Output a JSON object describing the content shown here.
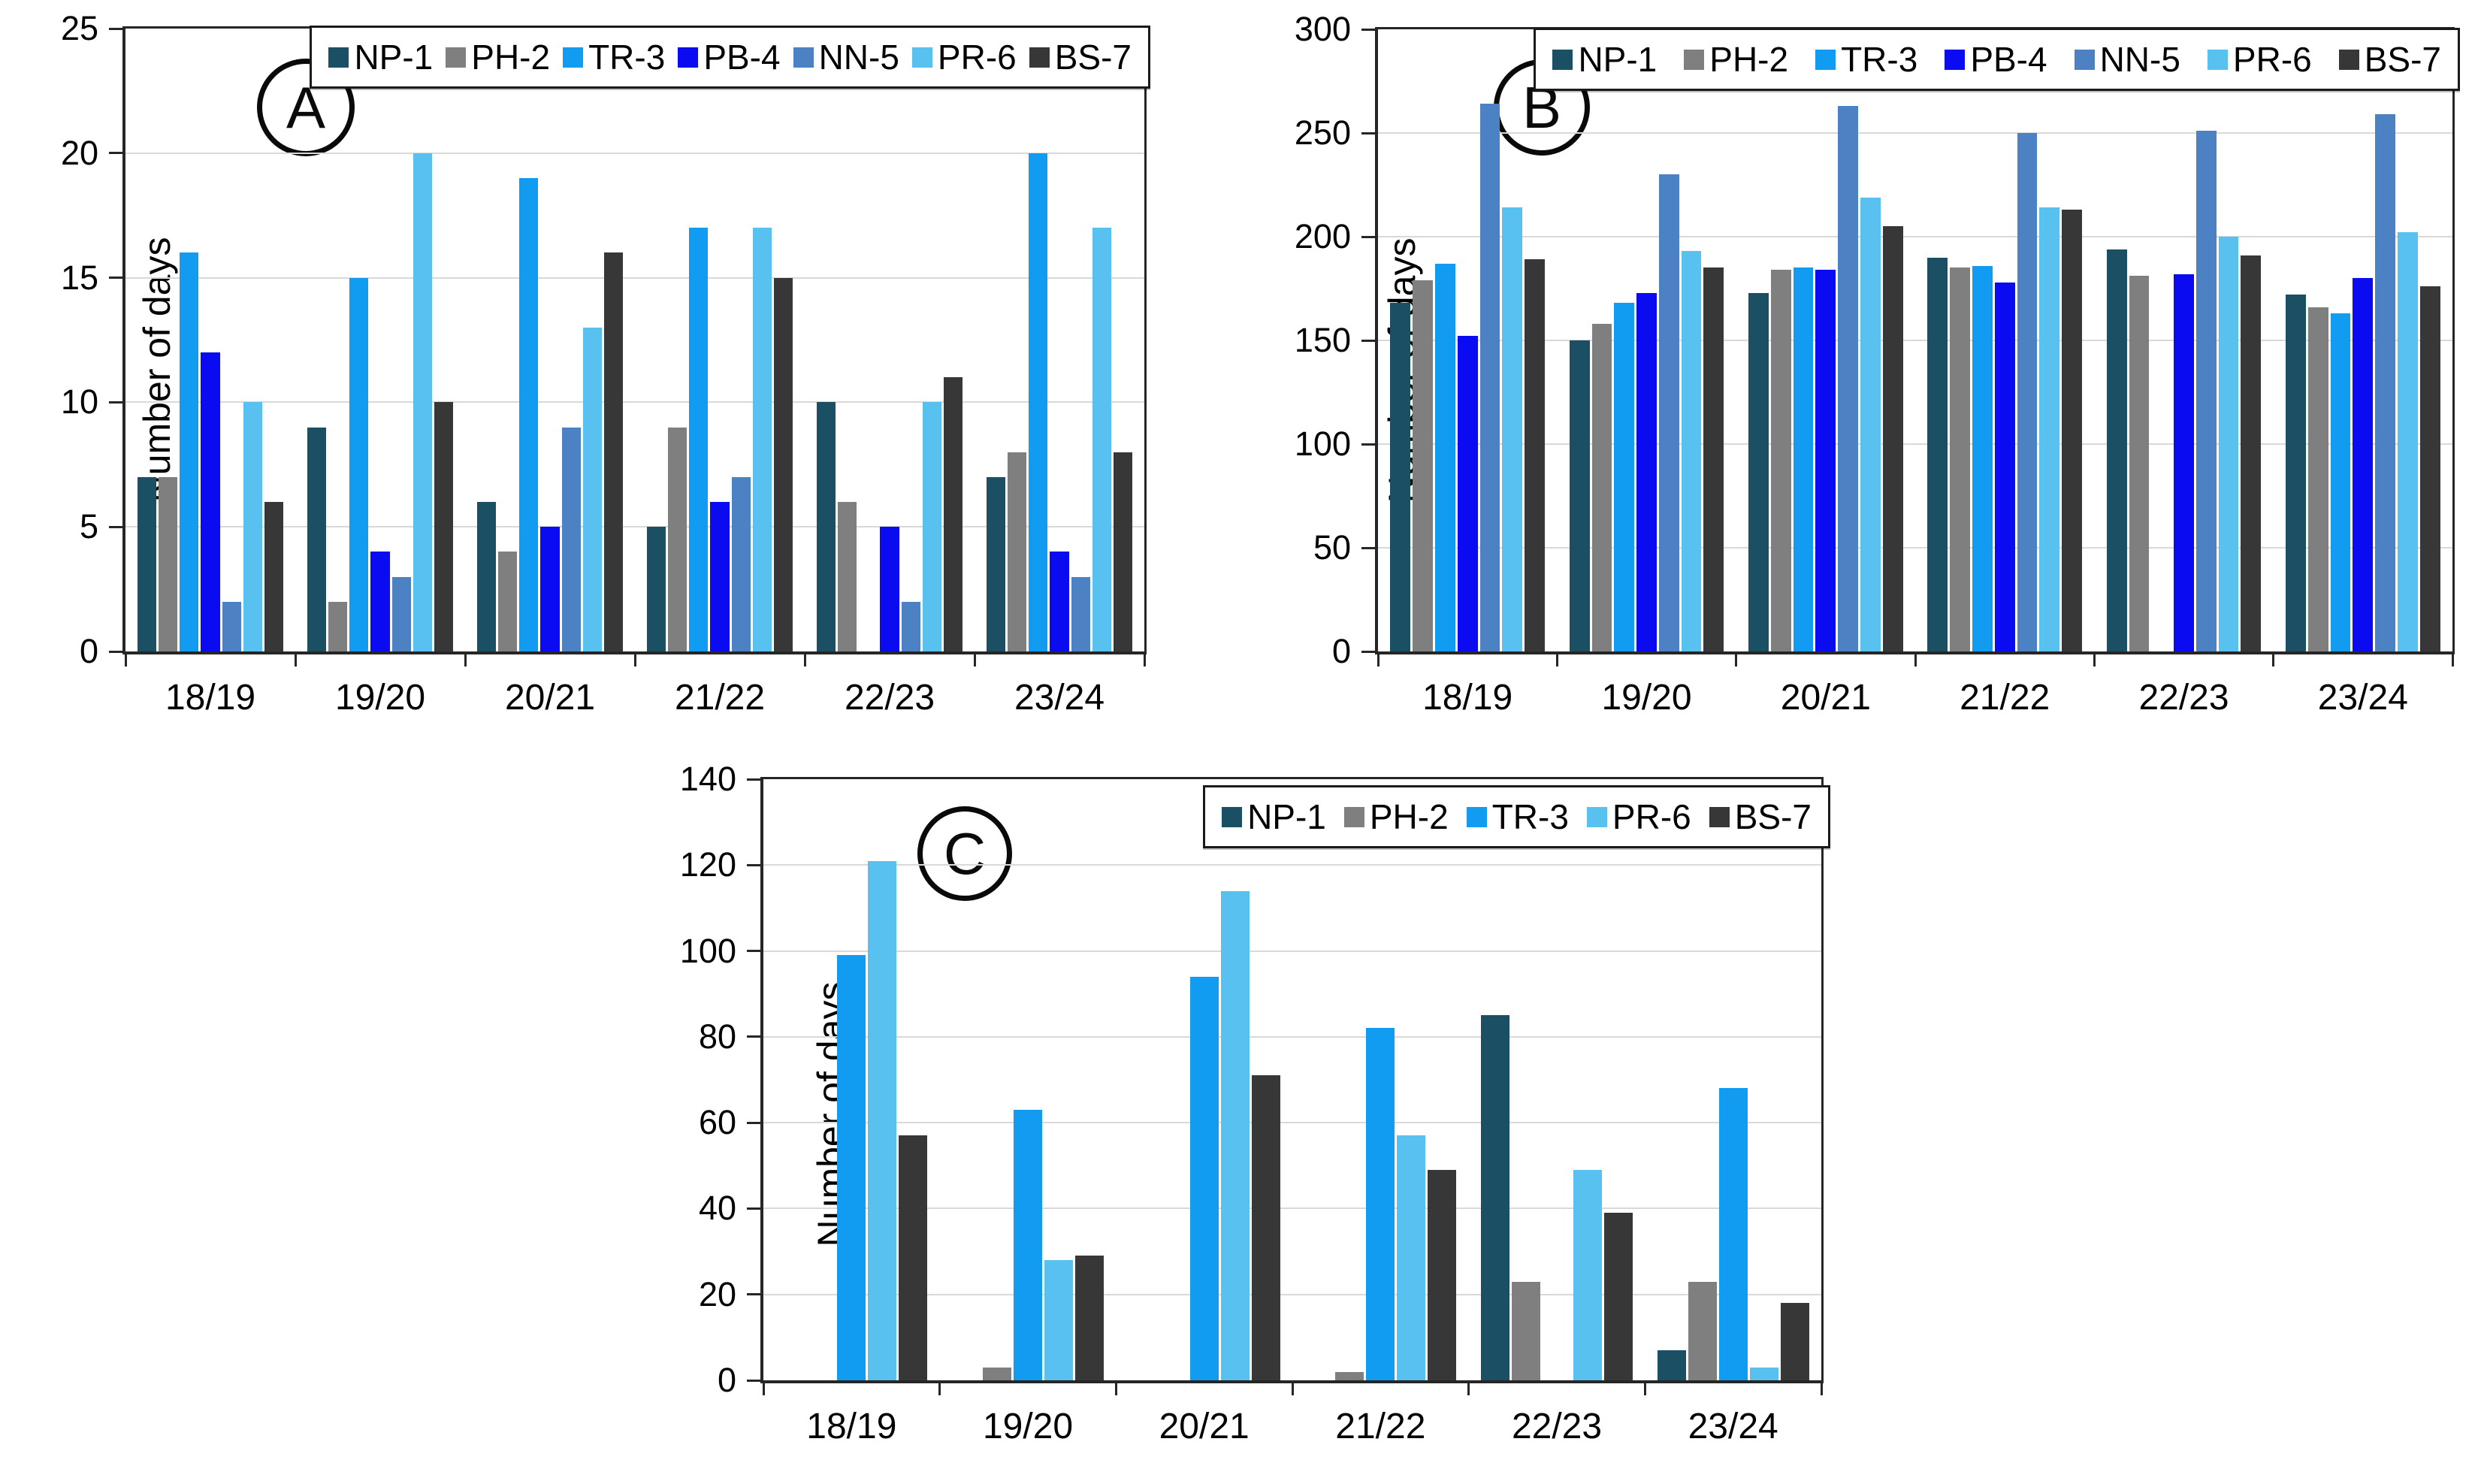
{
  "figure_title": "",
  "chart_data": [
    {
      "type": "bar",
      "panel_label": "A",
      "title": "",
      "xlabel": "",
      "ylabel": "Number of days",
      "ylim": [
        0,
        25
      ],
      "yticks": [
        0,
        5,
        10,
        15,
        20,
        25
      ],
      "grid": true,
      "legend_position": "top-right",
      "categories": [
        "18/19",
        "19/20",
        "20/21",
        "21/22",
        "22/23",
        "23/24"
      ],
      "series": [
        {
          "name": "NP-1",
          "color": "#1B4F63",
          "values": [
            7,
            9,
            6,
            5,
            10,
            7
          ]
        },
        {
          "name": "PH-2",
          "color": "#7F7F7F",
          "values": [
            7,
            2,
            4,
            9,
            6,
            8
          ]
        },
        {
          "name": "TR-3",
          "color": "#119BF1",
          "values": [
            16,
            15,
            19,
            17,
            0,
            20
          ]
        },
        {
          "name": "PB-4",
          "color": "#0B0BF2",
          "values": [
            12,
            4,
            5,
            6,
            5,
            4
          ]
        },
        {
          "name": "NN-5",
          "color": "#4C82C4",
          "values": [
            2,
            3,
            9,
            7,
            2,
            3
          ]
        },
        {
          "name": "PR-6",
          "color": "#58C1F0",
          "values": [
            10,
            20,
            13,
            17,
            10,
            17
          ]
        },
        {
          "name": "BS-7",
          "color": "#373737",
          "values": [
            6,
            10,
            16,
            15,
            11,
            8
          ]
        }
      ]
    },
    {
      "type": "bar",
      "panel_label": "B",
      "title": "",
      "xlabel": "",
      "ylabel": "Number of days",
      "ylim": [
        0,
        300
      ],
      "yticks": [
        0,
        50,
        100,
        150,
        200,
        250,
        300
      ],
      "grid": true,
      "legend_position": "top-right",
      "categories": [
        "18/19",
        "19/20",
        "20/21",
        "21/22",
        "22/23",
        "23/24"
      ],
      "series": [
        {
          "name": "NP-1",
          "color": "#1B4F63",
          "values": [
            168,
            150,
            173,
            190,
            194,
            172
          ]
        },
        {
          "name": "PH-2",
          "color": "#7F7F7F",
          "values": [
            179,
            158,
            184,
            185,
            181,
            166
          ]
        },
        {
          "name": "TR-3",
          "color": "#119BF1",
          "values": [
            187,
            168,
            185,
            186,
            0,
            163
          ]
        },
        {
          "name": "PB-4",
          "color": "#0B0BF2",
          "values": [
            152,
            173,
            184,
            178,
            182,
            180
          ]
        },
        {
          "name": "NN-5",
          "color": "#4C82C4",
          "values": [
            264,
            230,
            263,
            250,
            251,
            259
          ]
        },
        {
          "name": "PR-6",
          "color": "#58C1F0",
          "values": [
            214,
            193,
            219,
            214,
            200,
            202
          ]
        },
        {
          "name": "BS-7",
          "color": "#373737",
          "values": [
            189,
            185,
            205,
            213,
            191,
            176
          ]
        }
      ]
    },
    {
      "type": "bar",
      "panel_label": "C",
      "title": "",
      "xlabel": "",
      "ylabel": "Number of days",
      "ylim": [
        0,
        140
      ],
      "yticks": [
        0,
        20,
        40,
        60,
        80,
        100,
        120,
        140
      ],
      "grid": true,
      "legend_position": "top-right",
      "categories": [
        "18/19",
        "19/20",
        "20/21",
        "21/22",
        "22/23",
        "23/24"
      ],
      "series": [
        {
          "name": "NP-1",
          "color": "#1B4F63",
          "values": [
            0,
            0,
            0,
            0,
            85,
            7
          ]
        },
        {
          "name": "PH-2",
          "color": "#7F7F7F",
          "values": [
            0,
            3,
            0,
            2,
            23,
            23
          ]
        },
        {
          "name": "TR-3",
          "color": "#119BF1",
          "values": [
            99,
            63,
            94,
            82,
            0,
            68
          ]
        },
        {
          "name": "PR-6",
          "color": "#58C1F0",
          "values": [
            121,
            28,
            114,
            57,
            49,
            3
          ]
        },
        {
          "name": "BS-7",
          "color": "#373737",
          "values": [
            57,
            29,
            71,
            49,
            39,
            18
          ]
        }
      ]
    }
  ]
}
